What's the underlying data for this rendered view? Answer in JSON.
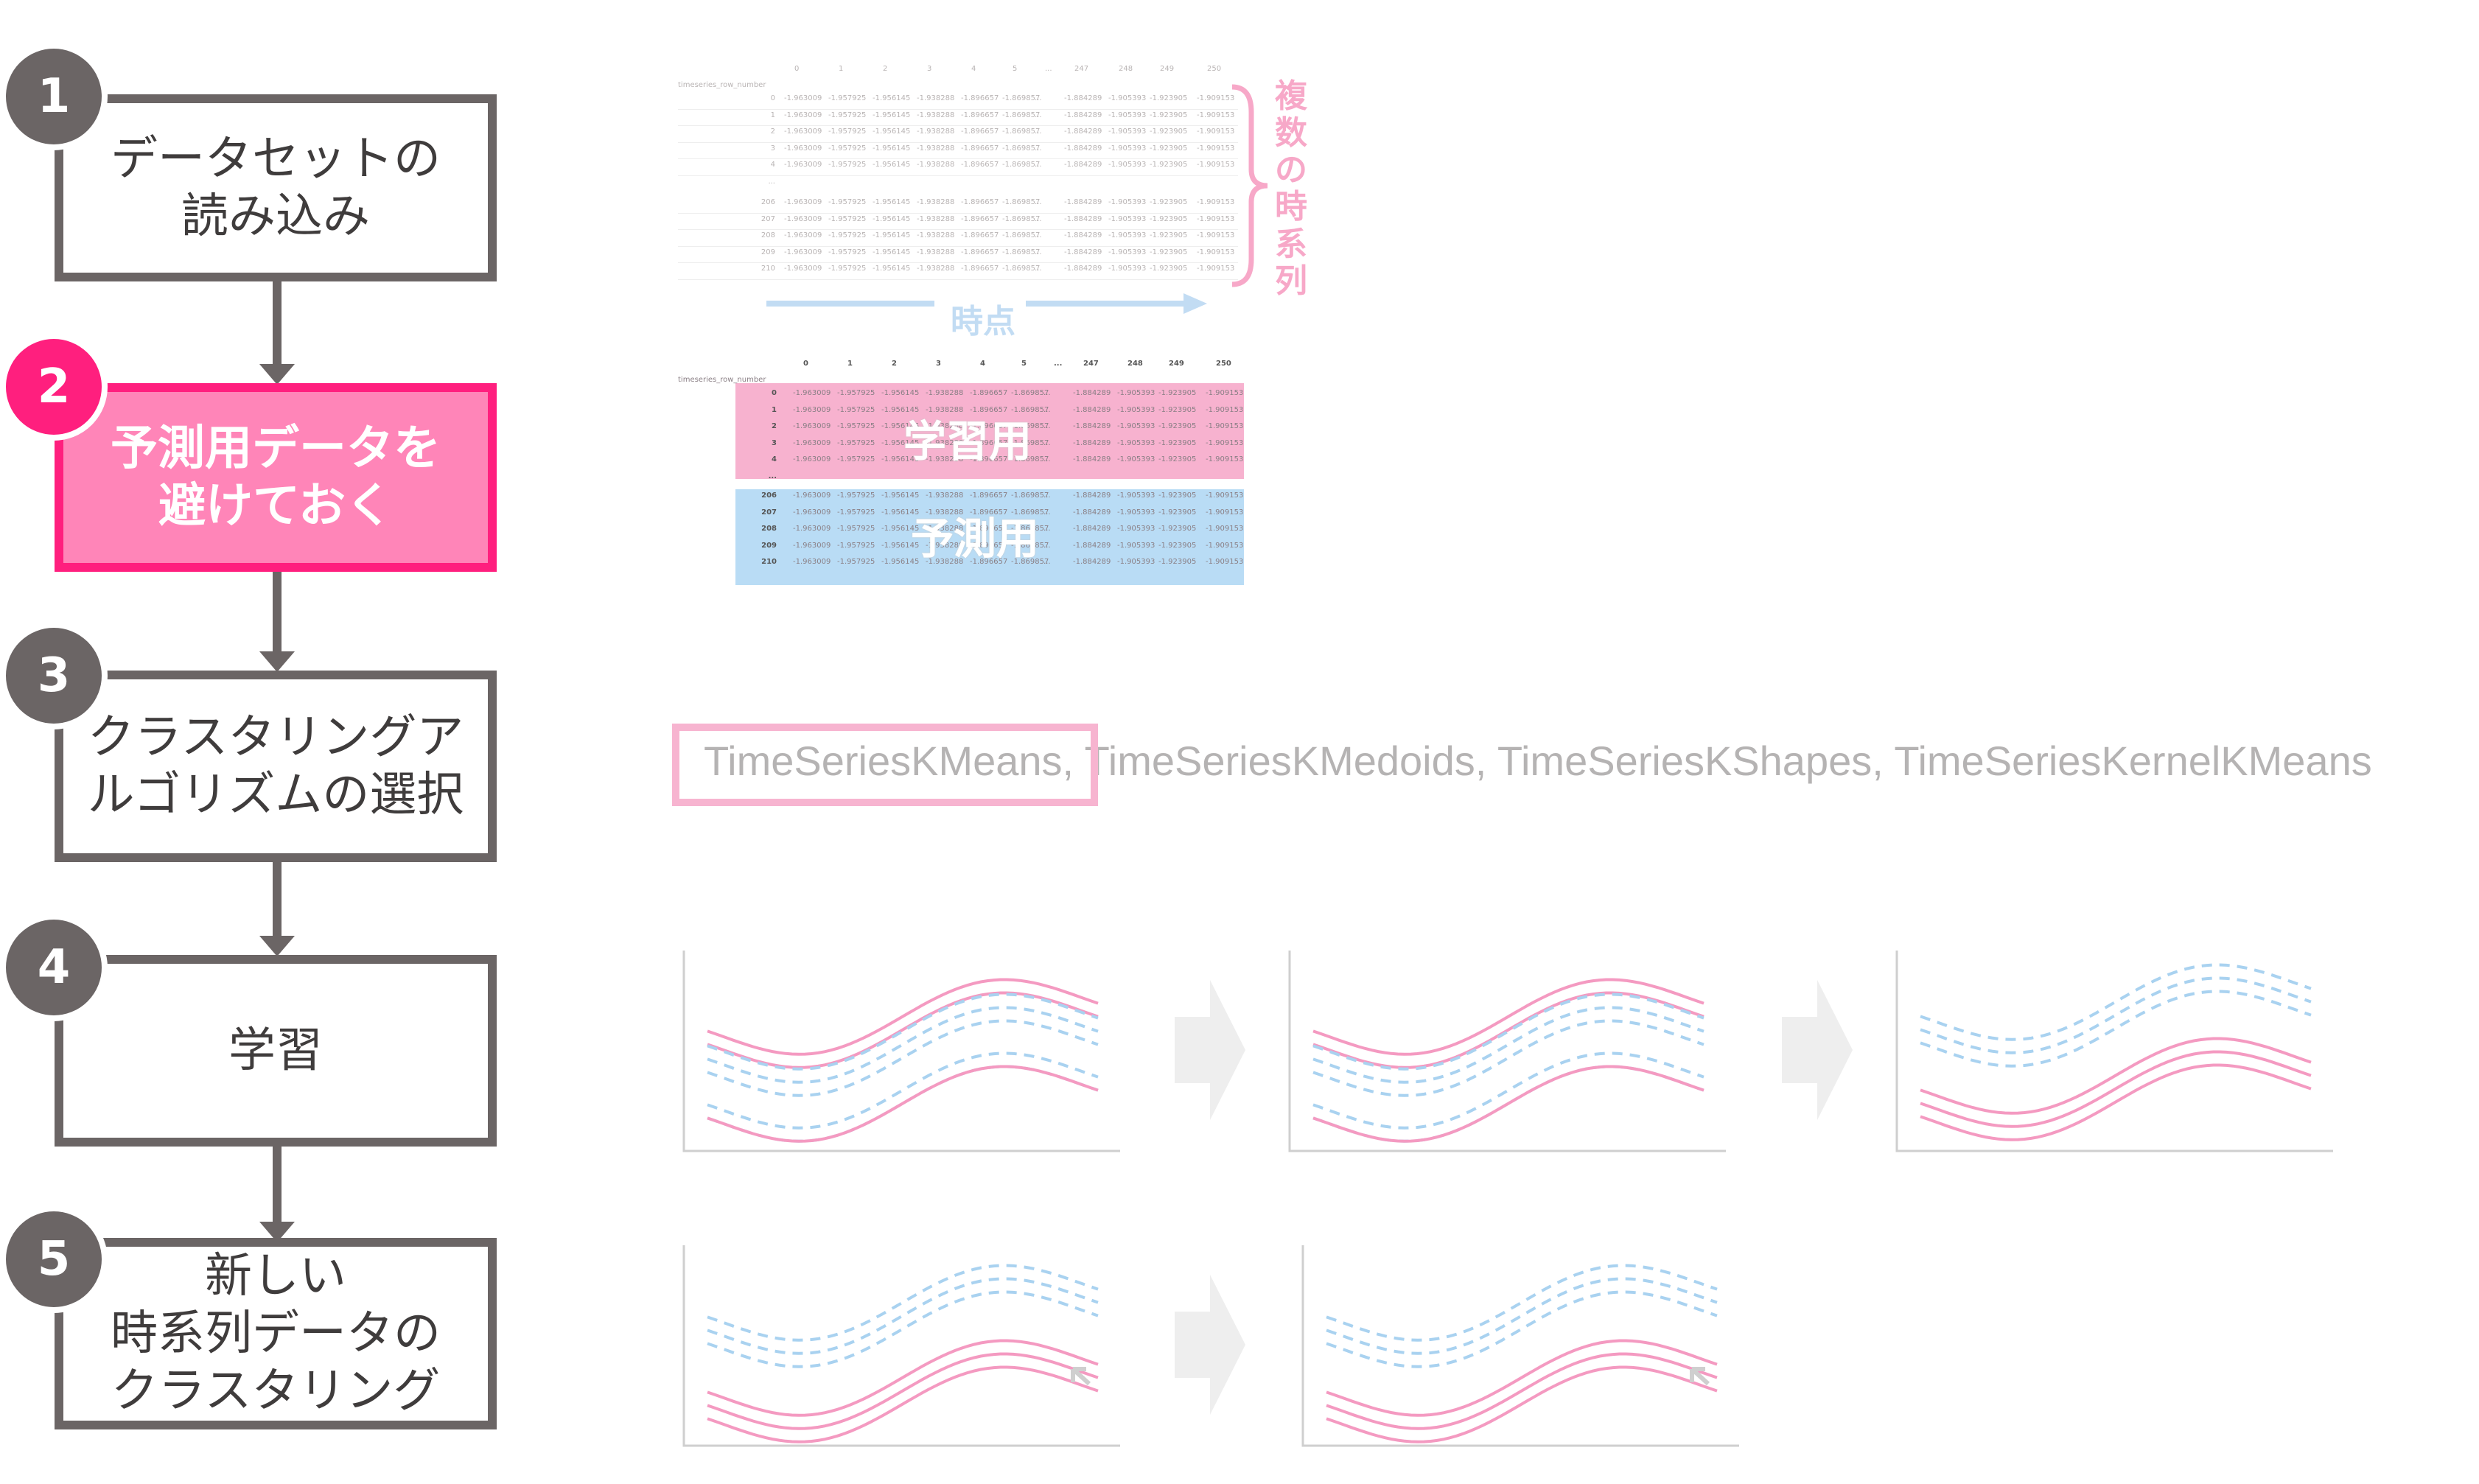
{
  "steps": [
    {
      "num": "1",
      "label": "データセットの\n読み込み"
    },
    {
      "num": "2",
      "label": "予測用データを\n避けておく"
    },
    {
      "num": "3",
      "label": "クラスタリングア\nルゴリズムの選択"
    },
    {
      "num": "4",
      "label": "学習"
    },
    {
      "num": "5",
      "label": "新しい\n時系列データの\nクラスタリング"
    }
  ],
  "table": {
    "index_name": "timeseries_row_number",
    "columns": [
      "0",
      "1",
      "2",
      "3",
      "4",
      "5",
      "...",
      "247",
      "248",
      "249",
      "250"
    ],
    "top_rows": [
      "0",
      "1",
      "2",
      "3",
      "4"
    ],
    "ellipsis": "...",
    "bottom_rows": [
      "206",
      "207",
      "208",
      "209",
      "210"
    ],
    "row_values": [
      "-1.963009",
      "-1.957925",
      "-1.956145",
      "-1.938288",
      "-1.896657",
      "-1.869857",
      "...",
      "-1.884289",
      "-1.905393",
      "-1.923905",
      "-1.909153"
    ]
  },
  "annotations": {
    "multiple_series": "複数の時系列",
    "time_points": "時点",
    "training": "学習用",
    "prediction": "予測用"
  },
  "algorithms": {
    "highlighted": "TimeSeriesKMeans,",
    "rest": " TimeSeriesKMedoids, TimeSeriesKShapes, TimeSeriesKernelKMeans"
  },
  "colors": {
    "step_gray": "#6b6565",
    "accent_pink": "#ff1f7e",
    "active_fill": "#ff85b8",
    "pink_line": "#f49ac1",
    "blue_line": "#a9d2f0",
    "train_fill": "#f7b2cf",
    "predict_fill": "#b9dcf5"
  }
}
